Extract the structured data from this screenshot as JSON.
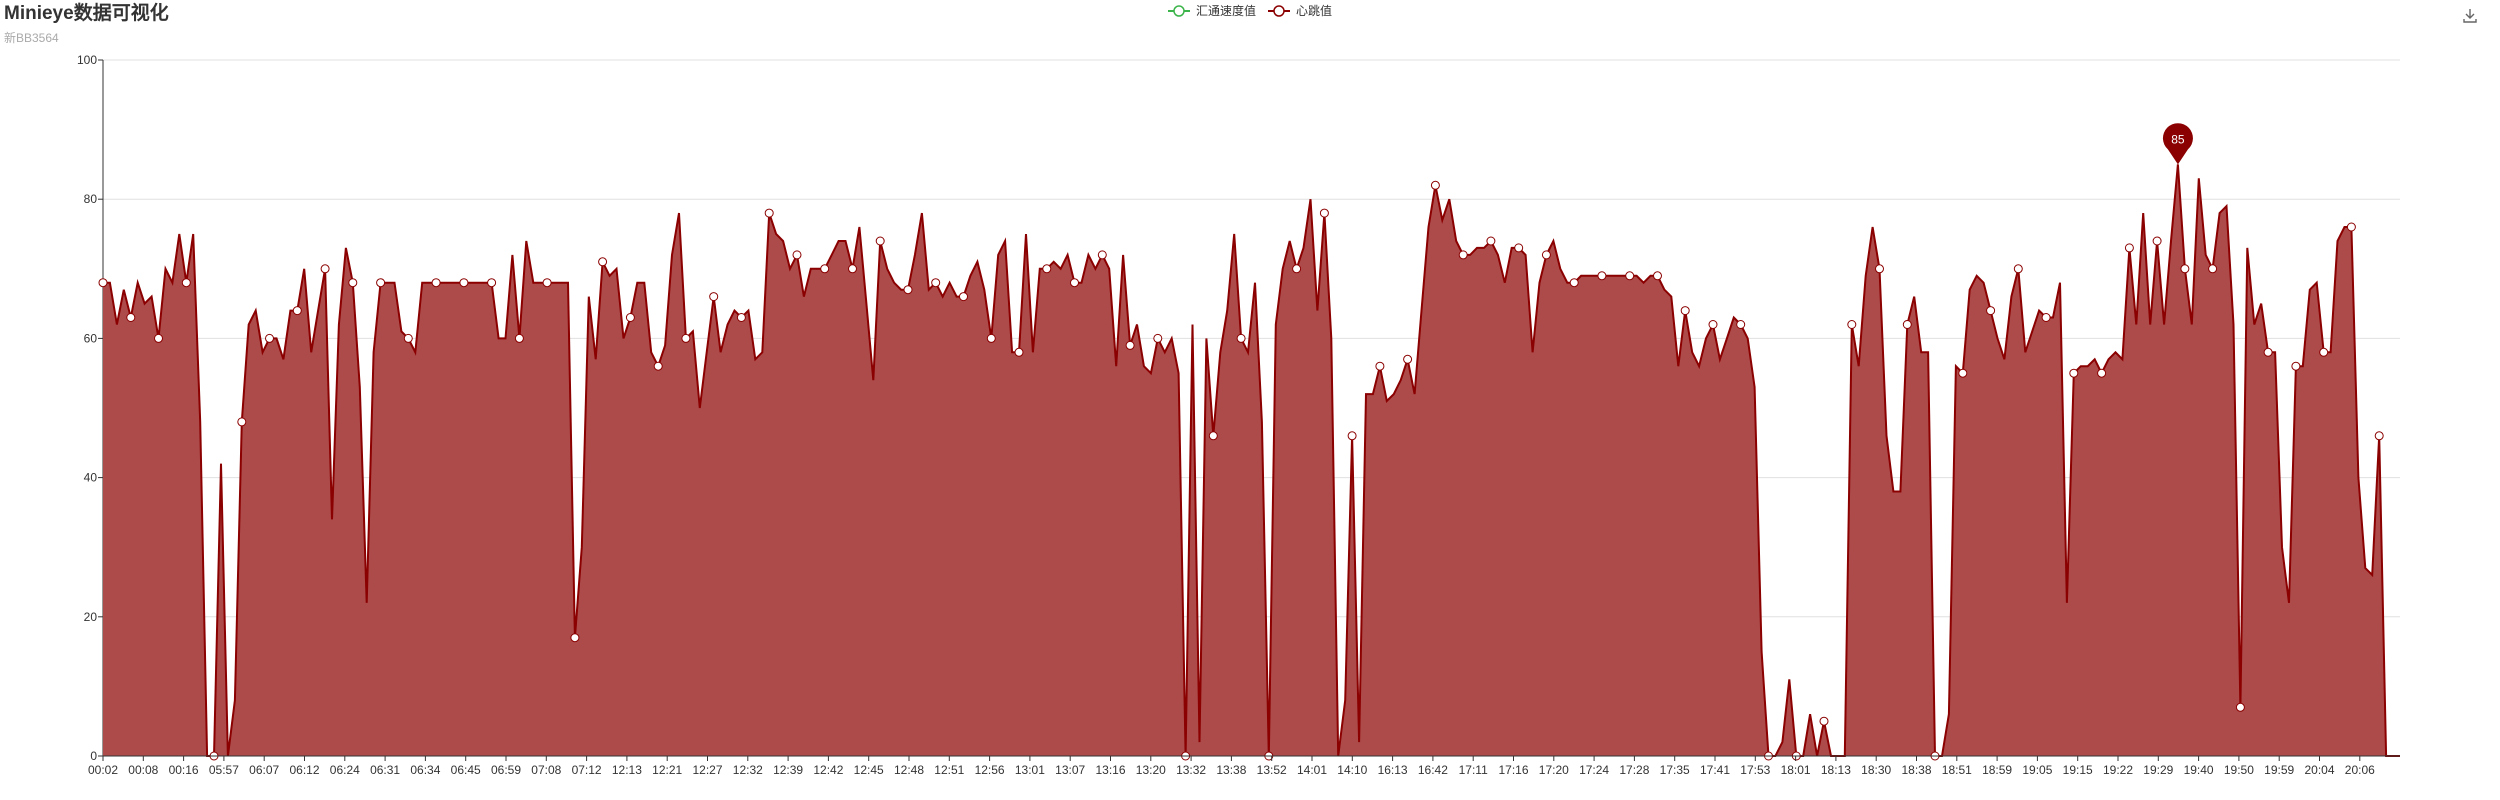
{
  "title": "Minieye数据可视化",
  "subtitle": "新BB3564",
  "colors": {
    "series1": "#3bb44a",
    "series2": "#8b0000",
    "area": "#ad4b4b",
    "grid": "#e0e0e0",
    "axis": "#333333"
  },
  "icons": {
    "save": "download-icon"
  },
  "chart_data": {
    "type": "area",
    "ylim": [
      0,
      100
    ],
    "yticks": [
      0,
      20,
      40,
      60,
      80,
      100
    ],
    "x_tick_labels": [
      "00:02",
      "00:08",
      "00:16",
      "05:57",
      "06:07",
      "06:12",
      "06:24",
      "06:31",
      "06:34",
      "06:45",
      "06:59",
      "07:08",
      "07:12",
      "12:13",
      "12:21",
      "12:27",
      "12:32",
      "12:39",
      "12:42",
      "12:45",
      "12:48",
      "12:51",
      "12:56",
      "13:01",
      "13:07",
      "13:16",
      "13:20",
      "13:32",
      "13:38",
      "13:52",
      "14:01",
      "14:10",
      "16:13",
      "16:42",
      "17:11",
      "17:16",
      "17:20",
      "17:24",
      "17:28",
      "17:35",
      "17:41",
      "17:53",
      "18:01",
      "18:13",
      "18:30",
      "18:38",
      "18:51",
      "18:59",
      "19:05",
      "19:15",
      "19:22",
      "19:29",
      "19:40",
      "19:50",
      "19:59",
      "20:04",
      "20:06"
    ],
    "legend": [
      "汇通速度值",
      "心跳值"
    ],
    "series": [
      {
        "name": "汇通速度值",
        "values": []
      },
      {
        "name": "心跳值",
        "values": [
          68,
          68,
          62,
          67,
          63,
          68,
          65,
          66,
          60,
          70,
          68,
          75,
          68,
          75,
          48,
          0,
          0,
          42,
          0,
          8,
          48,
          62,
          64,
          58,
          60,
          60,
          57,
          64,
          64,
          70,
          58,
          64,
          70,
          34,
          62,
          73,
          68,
          53,
          22,
          58,
          68,
          68,
          68,
          61,
          60,
          58,
          68,
          68,
          68,
          68,
          68,
          68,
          68,
          68,
          68,
          68,
          68,
          60,
          60,
          72,
          60,
          74,
          68,
          68,
          68,
          68,
          68,
          68,
          17,
          30,
          66,
          57,
          71,
          69,
          70,
          60,
          63,
          68,
          68,
          58,
          56,
          59,
          72,
          78,
          60,
          61,
          50,
          58,
          66,
          58,
          62,
          64,
          63,
          64,
          57,
          58,
          78,
          75,
          74,
          70,
          72,
          66,
          70,
          70,
          70,
          72,
          74,
          74,
          70,
          76,
          65,
          54,
          74,
          70,
          68,
          67,
          67,
          72,
          78,
          67,
          68,
          66,
          68,
          66,
          66,
          69,
          71,
          67,
          60,
          72,
          74,
          58,
          58,
          75,
          58,
          70,
          70,
          71,
          70,
          72,
          68,
          68,
          72,
          70,
          72,
          70,
          56,
          72,
          59,
          62,
          56,
          55,
          60,
          58,
          60,
          55,
          0,
          62,
          2,
          60,
          46,
          58,
          64,
          75,
          60,
          58,
          68,
          48,
          0,
          62,
          70,
          74,
          70,
          73,
          80,
          64,
          78,
          60,
          0,
          8,
          46,
          2,
          52,
          52,
          56,
          51,
          52,
          54,
          57,
          52,
          64,
          76,
          82,
          77,
          80,
          74,
          72,
          72,
          73,
          73,
          74,
          72,
          68,
          73,
          73,
          72,
          58,
          68,
          72,
          74,
          70,
          68,
          68,
          69,
          69,
          69,
          69,
          69,
          69,
          69,
          69,
          69,
          68,
          69,
          69,
          67,
          66,
          56,
          64,
          58,
          56,
          60,
          62,
          57,
          60,
          63,
          62,
          60,
          53,
          15,
          0,
          0,
          2,
          11,
          0,
          0,
          6,
          0,
          5,
          0,
          0,
          0,
          62,
          56,
          69,
          76,
          70,
          46,
          38,
          38,
          62,
          66,
          58,
          58,
          0,
          0,
          6,
          56,
          55,
          67,
          69,
          68,
          64,
          60,
          57,
          66,
          70,
          58,
          61,
          64,
          63,
          63,
          68,
          22,
          55,
          56,
          56,
          57,
          55,
          57,
          58,
          57,
          73,
          62,
          78,
          62,
          74,
          62,
          74,
          85,
          70,
          62,
          83,
          72,
          70,
          78,
          79,
          62,
          7,
          73,
          62,
          65,
          58,
          58,
          30,
          22,
          56,
          56,
          67,
          68,
          58,
          58,
          74,
          76,
          76,
          40,
          27,
          26,
          46,
          0,
          0,
          0
        ]
      }
    ],
    "markpoint": {
      "label": "85",
      "value": 85
    }
  }
}
